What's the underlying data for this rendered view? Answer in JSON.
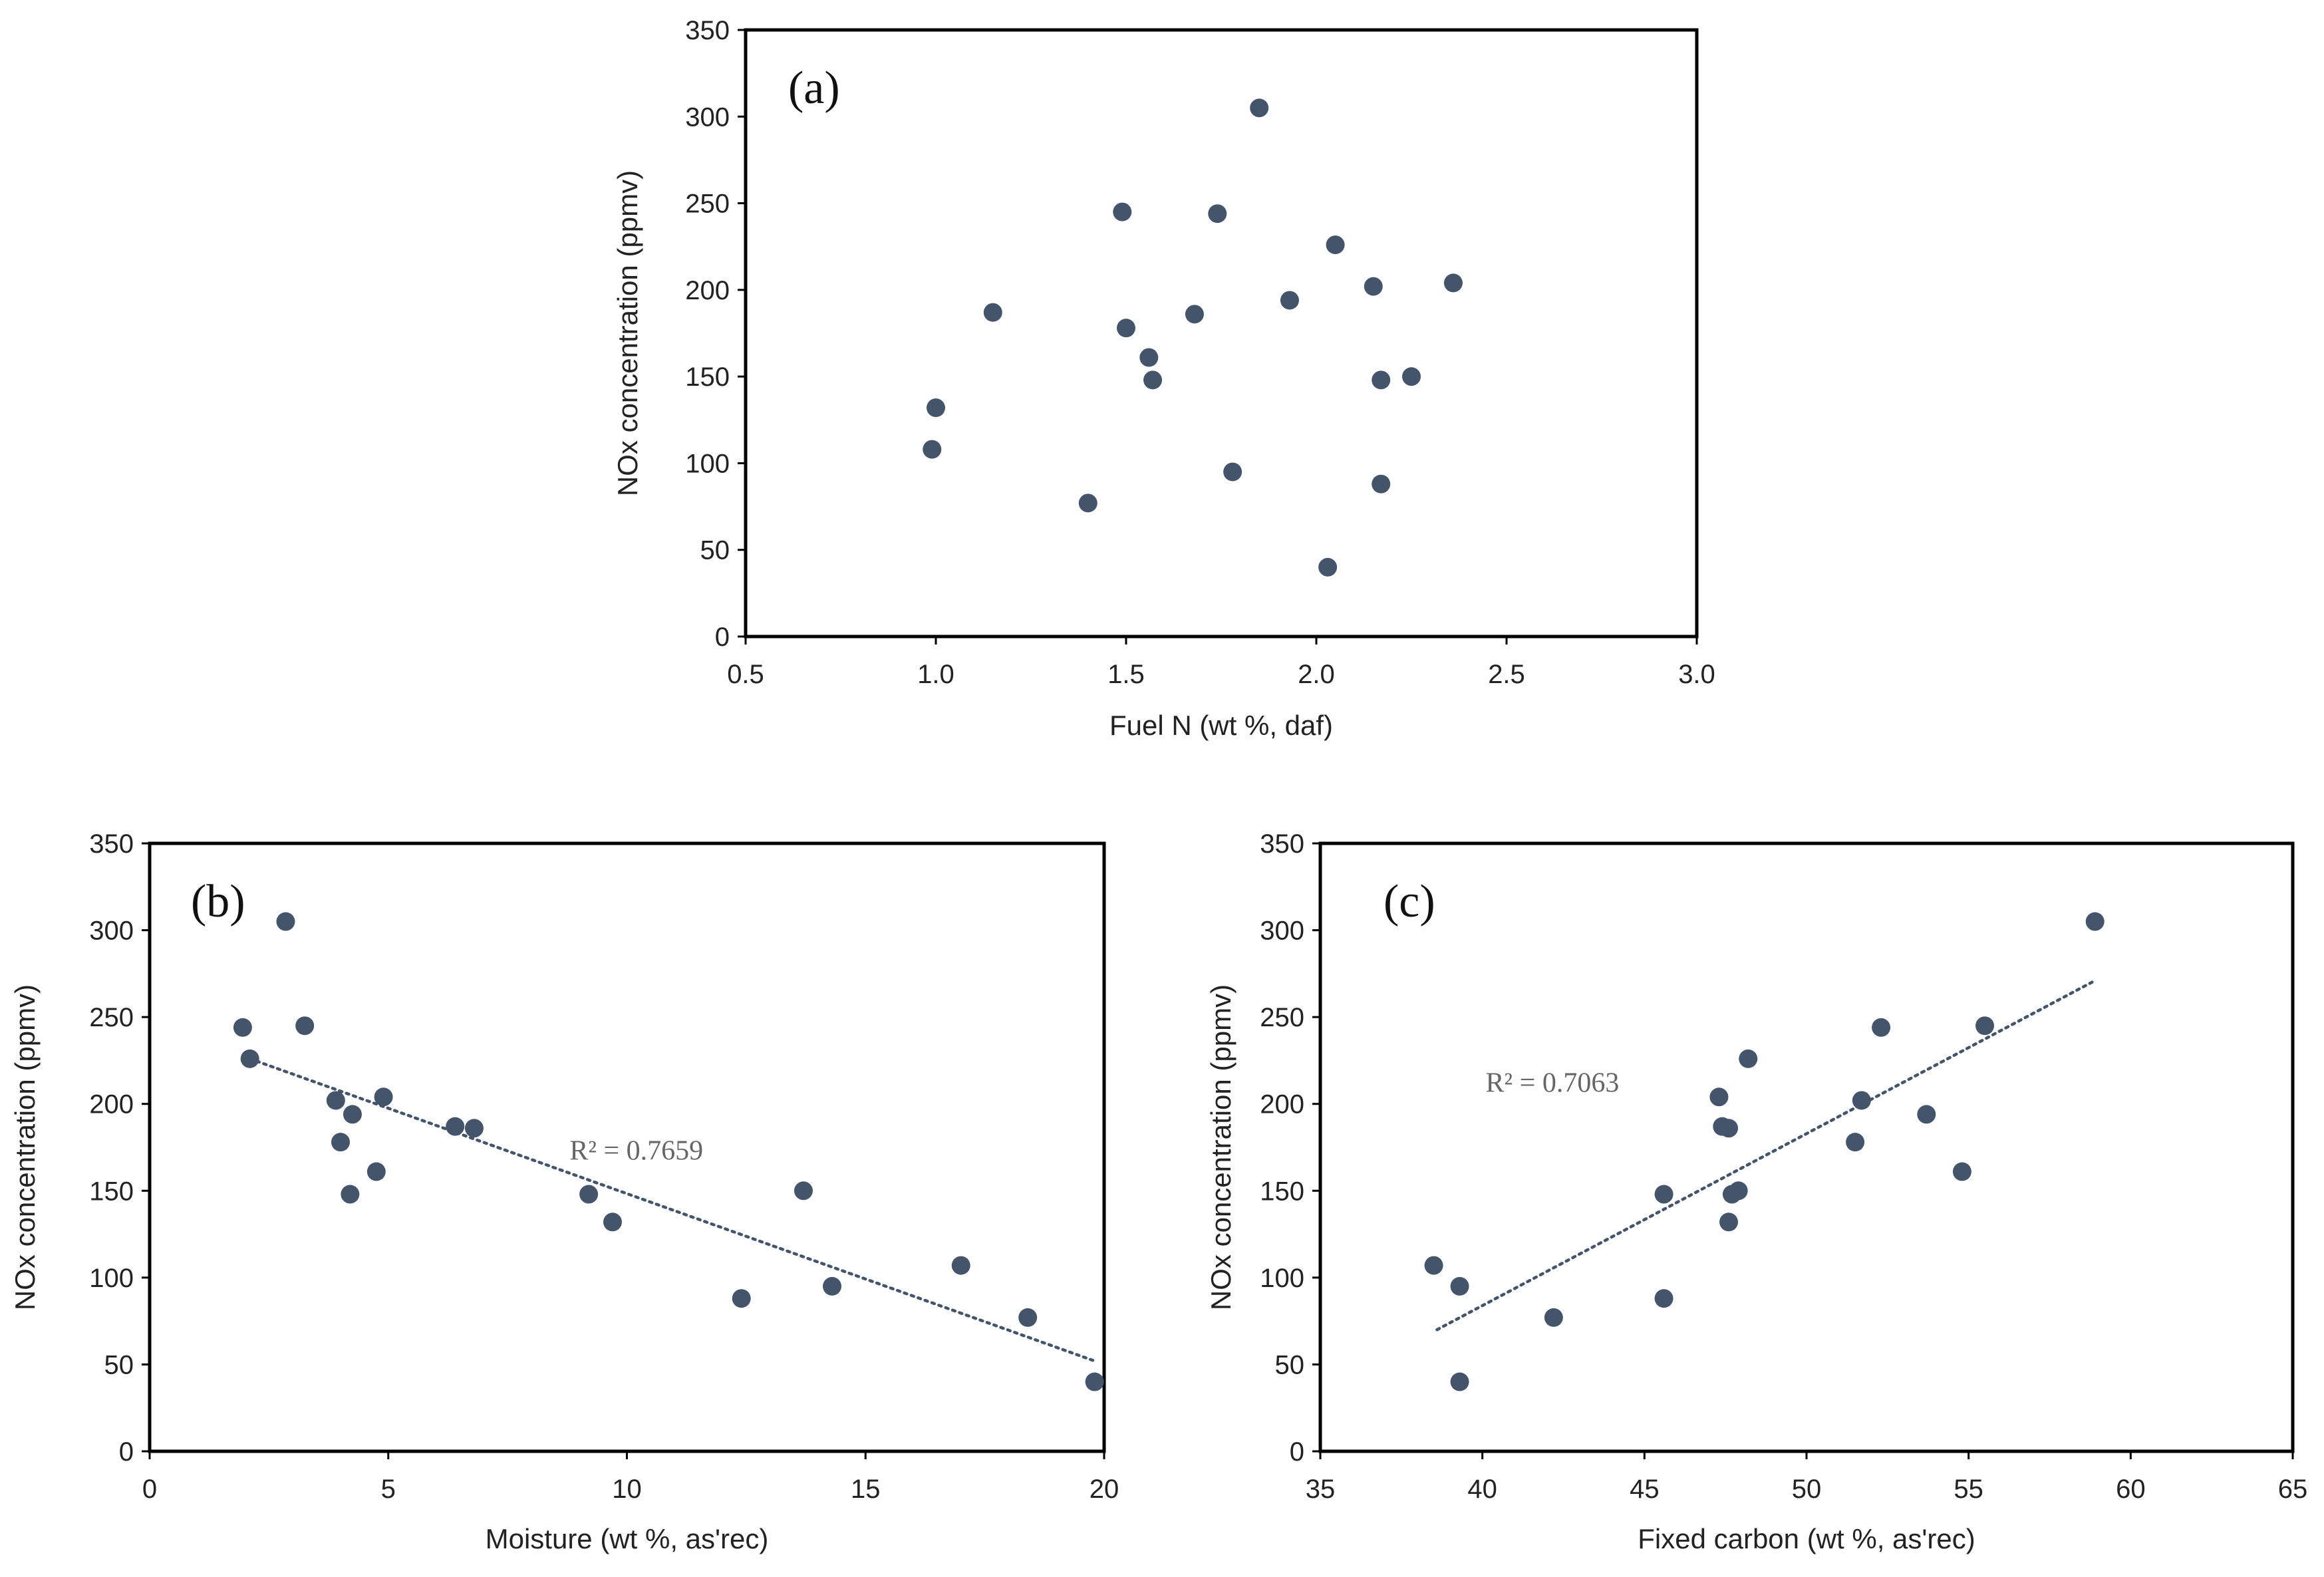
{
  "colors": {
    "point": "#44546a",
    "trend": "#44546a",
    "frame": "#000000"
  },
  "chart_data": [
    {
      "id": "a",
      "type": "scatter",
      "panel_label": "(a)",
      "xlabel": "Fuel N (wt %, daf)",
      "ylabel": "NOx concentration (ppmv)",
      "xlim": [
        0.5,
        3.0
      ],
      "ylim": [
        0,
        350
      ],
      "xticks": [
        0.5,
        1.0,
        1.5,
        2.0,
        2.5,
        3.0
      ],
      "xtick_labels": [
        "0.5",
        "1.0",
        "1.5",
        "2.0",
        "2.5",
        "3.0"
      ],
      "yticks": [
        0,
        50,
        100,
        150,
        200,
        250,
        300,
        350
      ],
      "ytick_labels": [
        "0",
        "50",
        "100",
        "150",
        "200",
        "250",
        "300",
        "350"
      ],
      "points": [
        {
          "x": 0.99,
          "y": 108
        },
        {
          "x": 1.0,
          "y": 132
        },
        {
          "x": 1.15,
          "y": 187
        },
        {
          "x": 1.4,
          "y": 77
        },
        {
          "x": 1.49,
          "y": 245
        },
        {
          "x": 1.5,
          "y": 178
        },
        {
          "x": 1.56,
          "y": 161
        },
        {
          "x": 1.57,
          "y": 148
        },
        {
          "x": 1.68,
          "y": 186
        },
        {
          "x": 1.74,
          "y": 244
        },
        {
          "x": 1.78,
          "y": 95
        },
        {
          "x": 1.85,
          "y": 305
        },
        {
          "x": 1.93,
          "y": 194
        },
        {
          "x": 2.03,
          "y": 40
        },
        {
          "x": 2.05,
          "y": 226
        },
        {
          "x": 2.15,
          "y": 202
        },
        {
          "x": 2.17,
          "y": 148
        },
        {
          "x": 2.17,
          "y": 88
        },
        {
          "x": 2.25,
          "y": 150
        },
        {
          "x": 2.36,
          "y": 204
        }
      ]
    },
    {
      "id": "b",
      "type": "scatter",
      "panel_label": "(b)",
      "xlabel": "Moisture (wt %, as'rec)",
      "ylabel": "NOx concentration (ppmv)",
      "xlim": [
        0,
        20
      ],
      "ylim": [
        0,
        350
      ],
      "xticks": [
        0,
        5,
        10,
        15,
        20
      ],
      "xtick_labels": [
        "0",
        "5",
        "10",
        "15",
        "20"
      ],
      "yticks": [
        0,
        50,
        100,
        150,
        200,
        250,
        300,
        350
      ],
      "ytick_labels": [
        "0",
        "50",
        "100",
        "150",
        "200",
        "250",
        "300",
        "350"
      ],
      "r2_label": "R² = 0.7659",
      "r2_anchor": {
        "x": 8.8,
        "y": 168
      },
      "trendline": {
        "x": [
          2.1,
          19.8
        ],
        "y": [
          226,
          52
        ]
      },
      "points": [
        {
          "x": 1.95,
          "y": 244
        },
        {
          "x": 2.1,
          "y": 226
        },
        {
          "x": 2.85,
          "y": 305
        },
        {
          "x": 3.25,
          "y": 245
        },
        {
          "x": 3.9,
          "y": 202
        },
        {
          "x": 4.0,
          "y": 178
        },
        {
          "x": 4.2,
          "y": 148
        },
        {
          "x": 4.25,
          "y": 194
        },
        {
          "x": 4.75,
          "y": 161
        },
        {
          "x": 4.9,
          "y": 204
        },
        {
          "x": 6.4,
          "y": 187
        },
        {
          "x": 6.8,
          "y": 186
        },
        {
          "x": 9.2,
          "y": 148
        },
        {
          "x": 9.7,
          "y": 132
        },
        {
          "x": 12.4,
          "y": 88
        },
        {
          "x": 13.7,
          "y": 150
        },
        {
          "x": 14.3,
          "y": 95
        },
        {
          "x": 17.0,
          "y": 107
        },
        {
          "x": 18.4,
          "y": 77
        },
        {
          "x": 19.8,
          "y": 40
        }
      ]
    },
    {
      "id": "c",
      "type": "scatter",
      "panel_label": "(c)",
      "xlabel": "Fixed carbon (wt %, as'rec)",
      "ylabel": "NOx concentration (ppmv)",
      "xlim": [
        35,
        65
      ],
      "ylim": [
        0,
        350
      ],
      "xticks": [
        35,
        40,
        45,
        50,
        55,
        60,
        65
      ],
      "xtick_labels": [
        "35",
        "40",
        "45",
        "50",
        "55",
        "60",
        "65"
      ],
      "yticks": [
        0,
        50,
        100,
        150,
        200,
        250,
        300,
        350
      ],
      "ytick_labels": [
        "0",
        "50",
        "100",
        "150",
        "200",
        "250",
        "300",
        "350"
      ],
      "r2_label": "R² = 0.7063",
      "r2_anchor": {
        "x": 40.1,
        "y": 207
      },
      "trendline": {
        "x": [
          38.6,
          58.9
        ],
        "y": [
          70,
          271
        ]
      },
      "points": [
        {
          "x": 38.5,
          "y": 107
        },
        {
          "x": 39.3,
          "y": 95
        },
        {
          "x": 39.3,
          "y": 40
        },
        {
          "x": 42.2,
          "y": 77
        },
        {
          "x": 45.6,
          "y": 148
        },
        {
          "x": 45.6,
          "y": 88
        },
        {
          "x": 47.3,
          "y": 204
        },
        {
          "x": 47.4,
          "y": 187
        },
        {
          "x": 47.6,
          "y": 186
        },
        {
          "x": 47.6,
          "y": 132
        },
        {
          "x": 47.7,
          "y": 148
        },
        {
          "x": 47.9,
          "y": 150
        },
        {
          "x": 48.2,
          "y": 226
        },
        {
          "x": 51.5,
          "y": 178
        },
        {
          "x": 51.7,
          "y": 202
        },
        {
          "x": 52.3,
          "y": 244
        },
        {
          "x": 53.7,
          "y": 194
        },
        {
          "x": 54.8,
          "y": 161
        },
        {
          "x": 55.5,
          "y": 245
        },
        {
          "x": 58.9,
          "y": 305
        }
      ]
    }
  ]
}
